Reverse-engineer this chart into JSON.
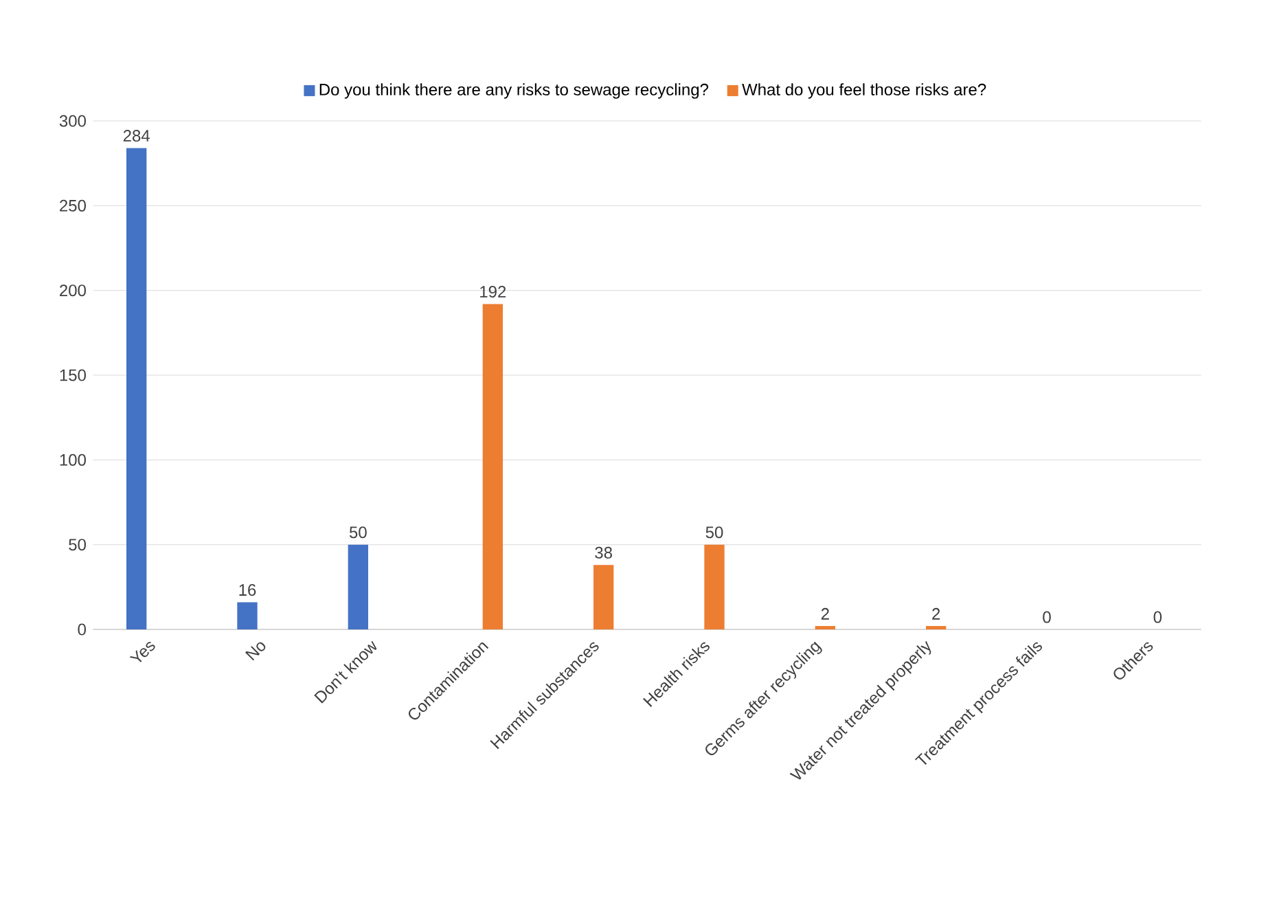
{
  "chart_data": {
    "type": "bar",
    "categories": [
      "Yes",
      "No",
      "Don't know",
      "Contamination",
      "Harmful substances",
      "Health risks",
      "Germs after recycling",
      "Water not treated properly",
      "Treatment process fails",
      "Others"
    ],
    "series": [
      {
        "name": "Do you think there are any risks to sewage recycling?",
        "color": "#4472c4",
        "values": [
          284,
          16,
          50,
          null,
          null,
          null,
          null,
          null,
          null,
          null
        ]
      },
      {
        "name": "What do you feel those risks are?",
        "color": "#ed7d31",
        "values": [
          null,
          null,
          null,
          192,
          38,
          50,
          2,
          2,
          0,
          0
        ]
      }
    ],
    "ylim": [
      0,
      300
    ],
    "yticks": [
      0,
      50,
      100,
      150,
      200,
      250,
      300
    ],
    "grid": "y",
    "legend": "top",
    "data_labels": true
  }
}
